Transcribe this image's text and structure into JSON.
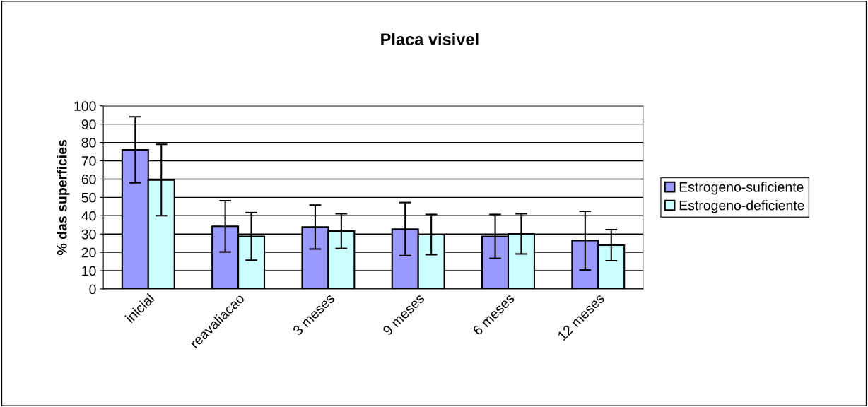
{
  "chart_data": {
    "type": "bar",
    "title": "Placa visivel",
    "ylabel": "% das superficies",
    "categories": [
      "inicial",
      "reavaliacao",
      "3 meses",
      "9 meses",
      "6 meses",
      "12 meses"
    ],
    "series": [
      {
        "name": "Estrogeno-suficiente",
        "color": "#9999ff",
        "values": [
          76,
          34.2,
          33.8,
          32.7,
          28.7,
          26.4
        ],
        "errors": [
          18,
          14,
          12,
          14.5,
          12,
          16
        ]
      },
      {
        "name": "Estrogeno-deficiente",
        "color": "#ccffff",
        "values": [
          59.5,
          28.7,
          31.6,
          29.7,
          30.1,
          23.9
        ],
        "errors": [
          19.5,
          13,
          9.5,
          11,
          11,
          8.5
        ]
      }
    ],
    "ylim": [
      0,
      100
    ],
    "yticks": [
      0,
      10,
      20,
      30,
      40,
      50,
      60,
      70,
      80,
      90,
      100
    ],
    "grid": "y",
    "legend": "right"
  }
}
